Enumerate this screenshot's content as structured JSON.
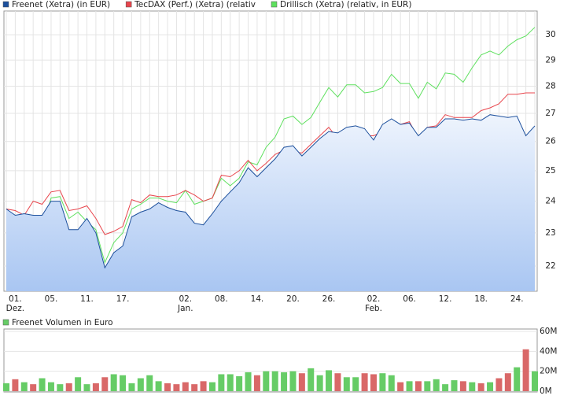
{
  "chart_data": [
    {
      "type": "line",
      "categories": [
        null,
        "01.",
        null,
        null,
        null,
        "05.",
        null,
        null,
        null,
        "11.",
        null,
        null,
        null,
        "17.",
        null,
        null,
        null,
        null,
        null,
        null,
        "02.",
        null,
        null,
        null,
        "08.",
        null,
        null,
        null,
        "14.",
        null,
        null,
        null,
        "20.",
        null,
        null,
        null,
        "26.",
        null,
        null,
        null,
        null,
        "02.",
        null,
        null,
        null,
        "06.",
        null,
        null,
        null,
        "12.",
        null,
        null,
        null,
        "18.",
        null,
        null,
        null,
        "24.",
        null,
        null
      ],
      "month_labels": [
        null,
        "Dez.",
        null,
        null,
        null,
        null,
        null,
        null,
        null,
        null,
        null,
        null,
        null,
        null,
        null,
        null,
        null,
        null,
        null,
        null,
        "Jan.",
        null,
        null,
        null,
        null,
        null,
        null,
        null,
        null,
        null,
        null,
        null,
        null,
        null,
        null,
        null,
        null,
        null,
        null,
        null,
        null,
        "Feb.",
        null,
        null,
        null,
        null,
        null,
        null,
        null,
        null,
        null,
        null,
        null,
        null,
        null,
        null,
        null,
        null,
        null,
        null
      ],
      "ylim": [
        21.27,
        30.97
      ],
      "log_scale": true,
      "grid": true,
      "yticks": [
        22,
        23,
        24,
        25,
        26,
        27,
        28,
        29,
        30
      ],
      "series": [
        {
          "name": "Freenet (Xetra) (in EUR)",
          "color": "#1c4f9c",
          "area": true,
          "values": [
            23.75,
            23.55,
            23.6,
            23.55,
            23.55,
            24.0,
            24.0,
            23.1,
            23.1,
            23.45,
            23.0,
            21.95,
            22.4,
            22.6,
            23.5,
            23.65,
            23.75,
            23.95,
            23.8,
            23.7,
            23.65,
            23.3,
            23.25,
            23.6,
            24.0,
            24.3,
            24.6,
            25.1,
            24.8,
            25.1,
            25.4,
            25.8,
            25.85,
            25.5,
            25.8,
            26.1,
            26.35,
            26.3,
            26.5,
            26.55,
            26.45,
            26.05,
            26.6,
            26.8,
            26.6,
            26.65,
            26.2,
            26.5,
            26.5,
            26.8,
            26.8,
            26.75,
            26.8,
            26.75,
            26.95,
            26.9,
            26.85,
            26.9,
            26.2,
            26.55
          ]
        },
        {
          "name": "TecDAX (Perf.) (Xetra) (relativ",
          "color": "#e8454c",
          "values": [
            23.75,
            23.7,
            23.55,
            24.0,
            23.9,
            24.3,
            24.35,
            23.7,
            23.75,
            23.85,
            23.45,
            22.95,
            23.05,
            23.2,
            24.05,
            23.95,
            24.2,
            24.15,
            24.15,
            24.2,
            24.35,
            24.2,
            24.0,
            24.1,
            24.85,
            24.8,
            25.0,
            25.35,
            25.0,
            25.25,
            25.55,
            25.7,
            25.65,
            25.6,
            25.9,
            26.2,
            26.5,
            26.1,
            26.4,
            26.35,
            26.2,
            26.2,
            26.35,
            26.45,
            26.6,
            26.7,
            26.1,
            26.5,
            26.55,
            26.95,
            26.85,
            26.85,
            26.85,
            27.1,
            27.2,
            27.35,
            27.7,
            27.7,
            27.75,
            27.75
          ]
        },
        {
          "name": "Drillisch (Xetra) (relativ, in EUR)",
          "color": "#5ee05e",
          "values": [
            23.75,
            23.4,
            23.1,
            23.25,
            23.1,
            24.1,
            24.15,
            23.45,
            23.65,
            23.35,
            23.1,
            22.1,
            22.7,
            23.0,
            23.75,
            23.9,
            24.1,
            24.1,
            24.0,
            23.95,
            24.35,
            23.9,
            24.0,
            24.1,
            24.75,
            24.5,
            24.75,
            25.3,
            25.2,
            25.8,
            26.15,
            26.8,
            26.9,
            26.6,
            26.85,
            27.4,
            27.95,
            27.6,
            28.05,
            28.05,
            27.75,
            27.8,
            27.95,
            28.45,
            28.1,
            28.1,
            27.55,
            28.15,
            27.9,
            28.5,
            28.45,
            28.15,
            28.7,
            29.2,
            29.35,
            29.2,
            29.55,
            29.8,
            29.95,
            30.3
          ]
        }
      ]
    },
    {
      "type": "bar",
      "series": [
        {
          "name": "Freenet Volumen in Euro",
          "color": "#66cc66",
          "down_color": "#d96868",
          "values": [
            8,
            12,
            9,
            7,
            13,
            9,
            7,
            8,
            14,
            7,
            8,
            14,
            17,
            16,
            8,
            13,
            16,
            10,
            8,
            7,
            9,
            7,
            10,
            9,
            17,
            17,
            15,
            19,
            16,
            20,
            20,
            19,
            20,
            18,
            23,
            16,
            21,
            18,
            14,
            14,
            18,
            17,
            18,
            16,
            9,
            10,
            10,
            10,
            12,
            7,
            11,
            10,
            9,
            8,
            9,
            13,
            18,
            24,
            42,
            20
          ]
        }
      ],
      "ylim": [
        0,
        60
      ],
      "yticks": [
        {
          "value": 0,
          "label": "0M"
        },
        {
          "value": 20,
          "label": "20M"
        },
        {
          "value": 40,
          "label": "40M"
        },
        {
          "value": 60,
          "label": "60M"
        }
      ]
    }
  ]
}
